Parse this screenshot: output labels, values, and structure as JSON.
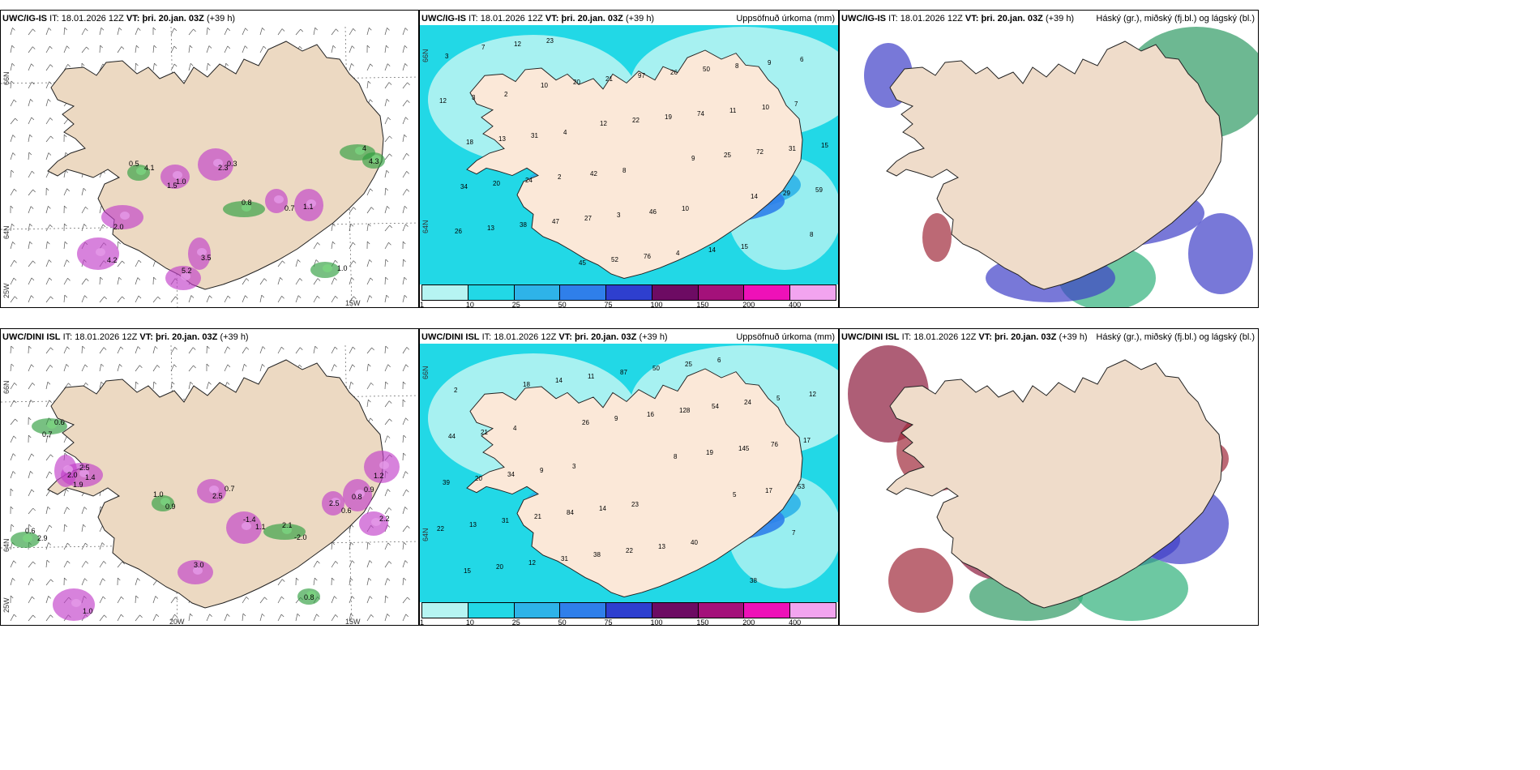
{
  "panels": [
    {
      "id": "p1",
      "model": "UWC/IG-IS",
      "it": "18.01.2026 12Z",
      "vt": "þri. 20.jan. 03Z",
      "lead": "(+39 h)",
      "right_title": "",
      "kind": "precip-type"
    },
    {
      "id": "p2",
      "model": "UWC/IG-IS",
      "it": "18.01.2026 12Z",
      "vt": "þri. 20.jan. 03Z",
      "lead": "(+39 h)",
      "right_title": "Uppsöfnuð úrkoma (mm)",
      "kind": "accum"
    },
    {
      "id": "p3",
      "model": "UWC/IG-IS",
      "it": "18.01.2026 12Z",
      "vt": "þri. 20.jan. 03Z",
      "lead": "(+39 h)",
      "right_title": "Háský (gr.), miðský (fj.bl.) og lágský (bl.)",
      "kind": "cloud"
    },
    {
      "id": "p4",
      "model": "UWC/DINI ISL",
      "it": "18.01.2026 12Z",
      "vt": "þri. 20.jan. 03Z",
      "lead": "(+39 h)",
      "right_title": "",
      "kind": "precip-type"
    },
    {
      "id": "p5",
      "model": "UWC/DINI ISL",
      "it": "18.01.2026 12Z",
      "vt": "þri. 20.jan. 03Z",
      "lead": "(+39 h)",
      "right_title": "Uppsöfnuð úrkoma (mm)",
      "kind": "accum"
    },
    {
      "id": "p6",
      "model": "UWC/DINI ISL",
      "it": "18.01.2026 12Z",
      "vt": "þri. 20.jan. 03Z",
      "lead": "(+39 h)",
      "right_title": "Háský (gr.), miðský (fj.bl.) og lágský (bl.)",
      "kind": "cloud"
    }
  ],
  "labels": {
    "it": "IT:",
    "vt": "VT:",
    "lat66": "66N",
    "lat64": "64N",
    "lon25": "25W",
    "lon20": "20W",
    "lon15": "15W"
  },
  "colorbar": {
    "ticks": [
      "1",
      "10",
      "25",
      "50",
      "75",
      "100",
      "150",
      "200",
      "400"
    ],
    "colors": [
      "#b6f4f2",
      "#22d8e6",
      "#2eb3e8",
      "#2f7fea",
      "#2e3fcf",
      "#6d0b63",
      "#a4117a",
      "#ee11b8",
      "#f2a4ef"
    ]
  },
  "accum_numbers_top": [
    "3",
    "2",
    "4",
    "8",
    "10",
    "15",
    "6",
    "3",
    "31",
    "42",
    "46",
    "14",
    "9",
    "12",
    "13",
    "2",
    "3",
    "4",
    "8",
    "7",
    "18",
    "24",
    "27",
    "76",
    "50",
    "10",
    "15",
    "20",
    "47",
    "52",
    "26",
    "11",
    "31",
    "34",
    "38",
    "45",
    "97",
    "74",
    "72",
    "59",
    "13",
    "23",
    "21",
    "19",
    "25",
    "29",
    "26",
    "12",
    "20",
    "22",
    "9",
    "14",
    "8",
    "7",
    "10",
    "12"
  ],
  "accum_numbers_bottom": [
    "2",
    "4",
    "3",
    "23",
    "40",
    "38",
    "12",
    "21",
    "9",
    "14",
    "13",
    "6",
    "5",
    "44",
    "34",
    "84",
    "22",
    "25",
    "24",
    "17",
    "20",
    "21",
    "38",
    "50",
    "54",
    "76",
    "39",
    "31",
    "31",
    "87",
    "128",
    "145",
    "53",
    "13",
    "12",
    "11",
    "16",
    "19",
    "17",
    "22",
    "20",
    "14",
    "9",
    "8",
    "5",
    "7",
    "15",
    "18",
    "26"
  ],
  "ptype_values_top": [
    "0.5",
    "1.0",
    "0.3",
    "0.8",
    "0.7",
    "1.1",
    "4",
    "2.0",
    "3.5",
    "1.0",
    "5.2",
    "4.2",
    "4.3",
    "4.1",
    "1.5",
    "2.3"
  ],
  "ptype_values_bottom": [
    "1.0",
    "2.5",
    "1.1",
    "2.1",
    "0.6",
    "0.8",
    "0.6",
    "1.9",
    "2.0",
    "2.9",
    "3.0",
    "1.0",
    "0.8",
    "2.2",
    "1.2",
    "0.9",
    "0.7",
    "-1.4",
    "-2.0",
    "2.5",
    "0.9",
    "0.7",
    "1.4",
    "2.5",
    "0.6"
  ]
}
